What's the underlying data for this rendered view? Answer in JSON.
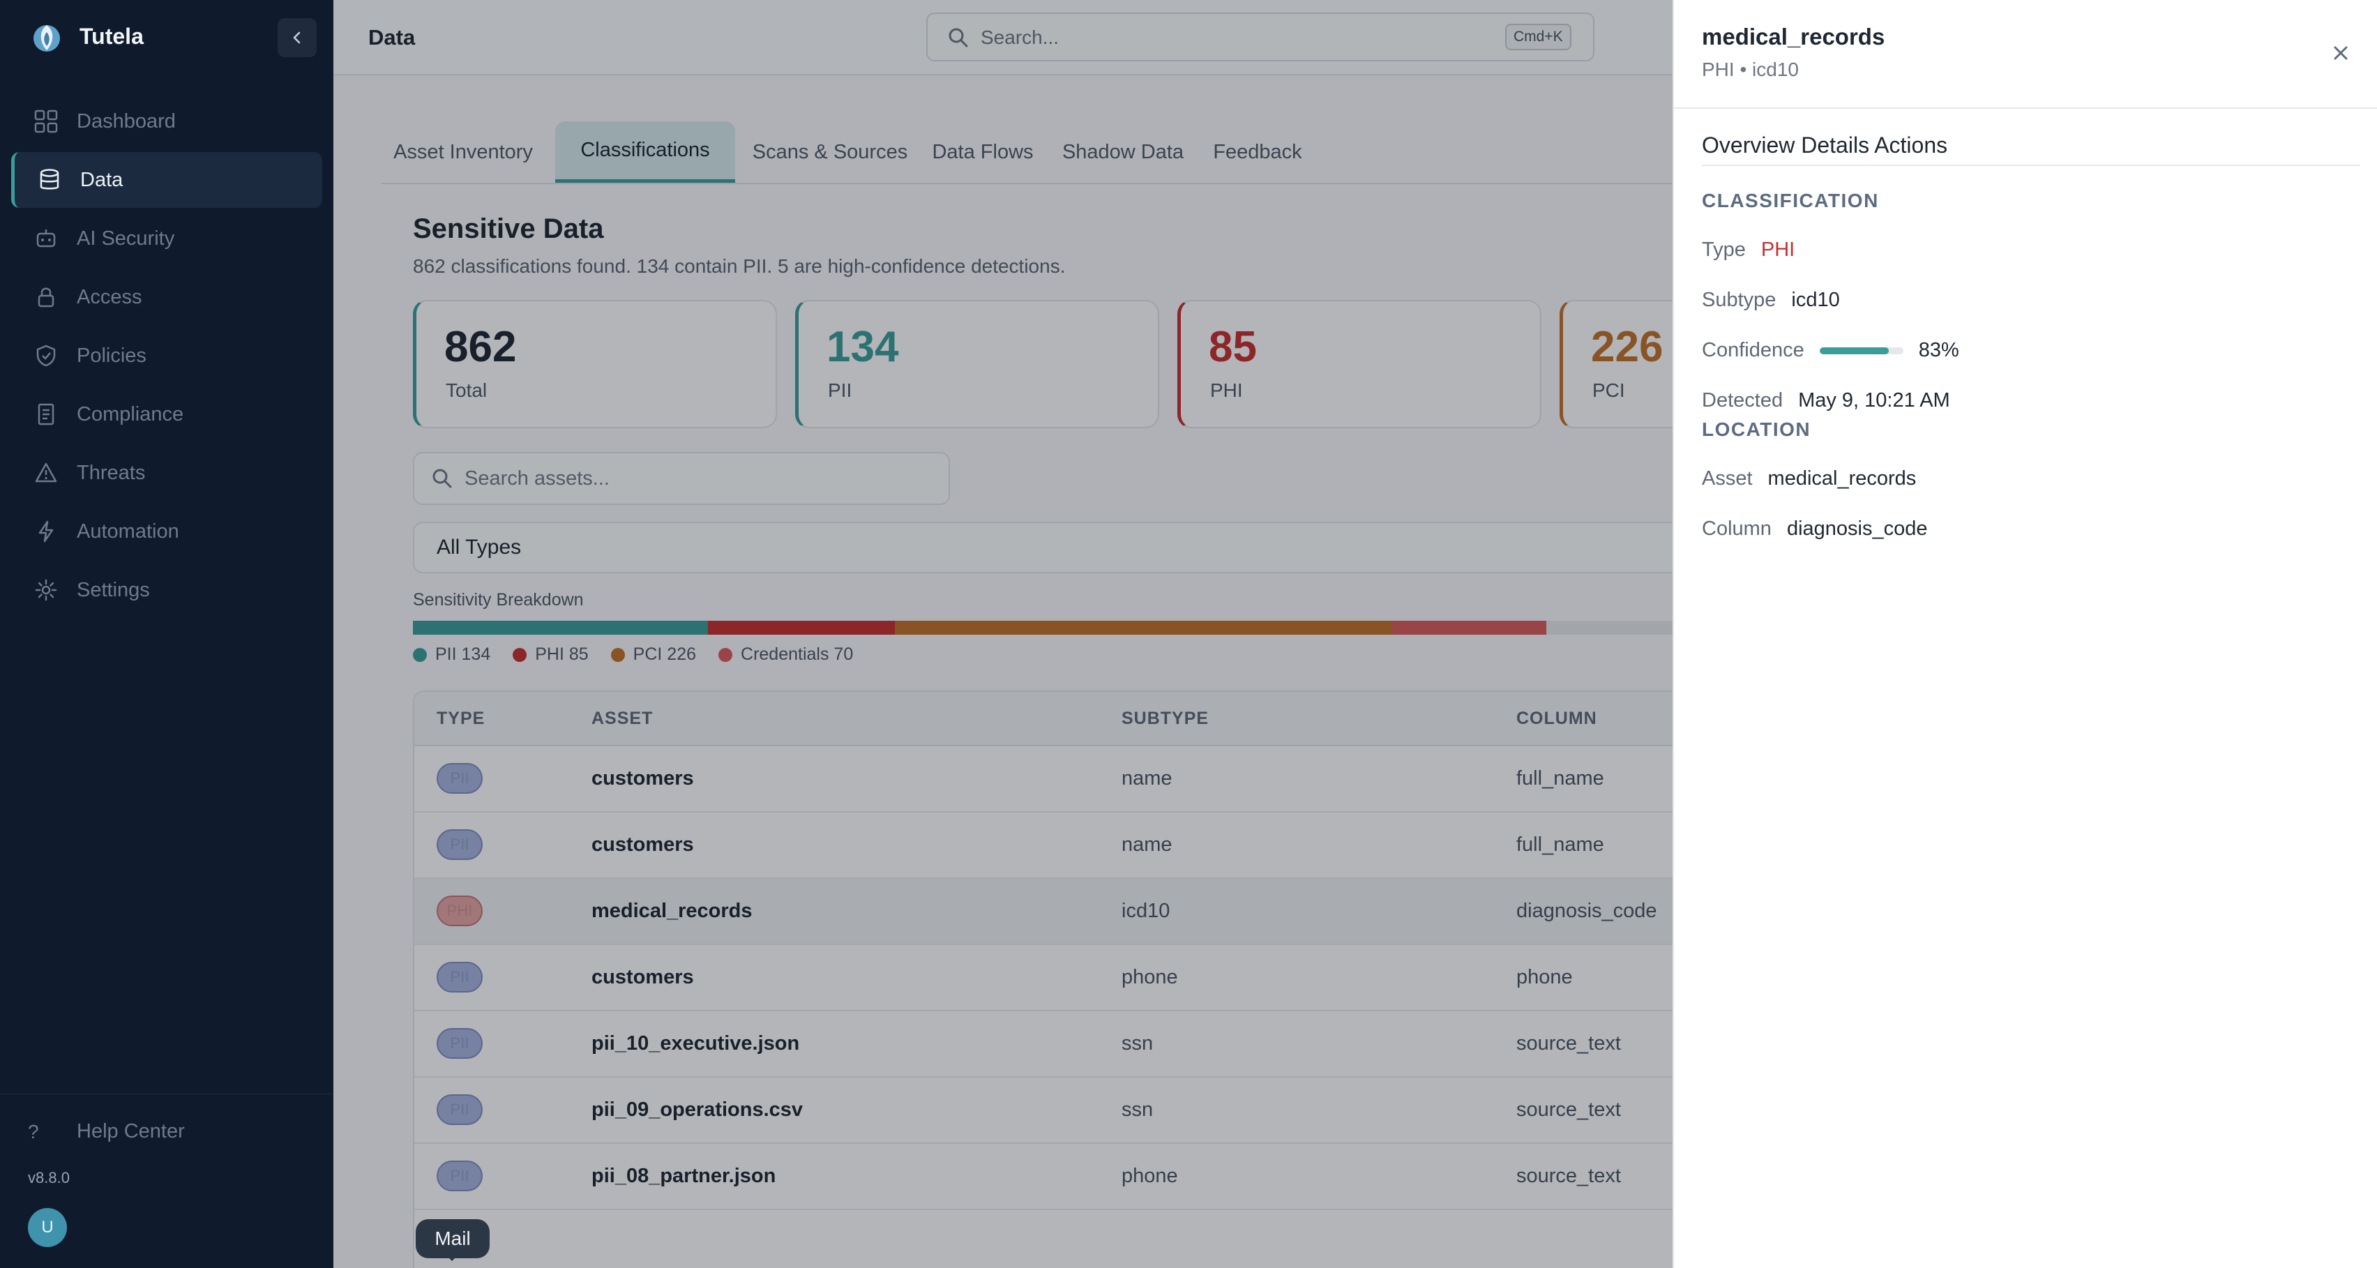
{
  "app": {
    "name": "Tutela",
    "version": "v8.8.0",
    "avatar_initial": "U",
    "collapse_icon": "chevron-left-icon"
  },
  "sidebar": {
    "items": [
      {
        "label": "Dashboard",
        "icon": "grid-icon",
        "active": false
      },
      {
        "label": "Data",
        "icon": "database-icon",
        "active": true
      },
      {
        "label": "AI Security",
        "icon": "robot-icon",
        "active": false
      },
      {
        "label": "Access",
        "icon": "lock-icon",
        "active": false
      },
      {
        "label": "Policies",
        "icon": "shield-icon",
        "active": false
      },
      {
        "label": "Compliance",
        "icon": "document-icon",
        "active": false
      },
      {
        "label": "Threats",
        "icon": "warning-icon",
        "active": false
      },
      {
        "label": "Automation",
        "icon": "lightning-icon",
        "active": false
      },
      {
        "label": "Settings",
        "icon": "gear-icon",
        "active": false
      }
    ],
    "help": {
      "label": "Help Center",
      "icon": "?"
    }
  },
  "header": {
    "title": "Data",
    "search": {
      "placeholder": "Search...",
      "shortcut": "Cmd+K"
    }
  },
  "main": {
    "tabs": [
      {
        "label": "Asset Inventory",
        "active": false
      },
      {
        "label": "Classifications",
        "active": true
      },
      {
        "label": "Scans & Sources",
        "active": false
      },
      {
        "label": "Data Flows",
        "active": false
      },
      {
        "label": "Shadow Data",
        "active": false
      },
      {
        "label": "Feedback",
        "active": false
      }
    ],
    "section_title": "Sensitive Data",
    "section_subtitle": "862 classifications found. 134 contain PII. 5 are high-confidence detections.",
    "cards": [
      {
        "value": "862",
        "label": "Total",
        "color": "#1f2733",
        "accent": "#3c9c99"
      },
      {
        "value": "134",
        "label": "PII",
        "color": "#3c9c99",
        "accent": "#3c9c99"
      },
      {
        "value": "85",
        "label": "PHI",
        "color": "#c53030",
        "accent": "#c53030"
      },
      {
        "value": "226",
        "label": "PCI",
        "color": "#c0712a",
        "accent": "#c0712a"
      }
    ],
    "asset_search": {
      "placeholder": "Search assets..."
    },
    "type_filter": {
      "selected": "All Types"
    },
    "breakdown": {
      "title": "Sensitivity Breakdown",
      "total": 862,
      "segments": [
        {
          "label": "PII",
          "value": 134,
          "color": "#3c9c99"
        },
        {
          "label": "PHI",
          "value": 85,
          "color": "#c53030"
        },
        {
          "label": "PCI",
          "value": 226,
          "color": "#c0712a"
        },
        {
          "label": "Credentials",
          "value": 70,
          "color": "#d95b5b"
        }
      ],
      "legend": [
        "PII 134",
        "PHI 85",
        "PCI 226",
        "Credentials 70"
      ]
    },
    "table": {
      "columns": [
        "TYPE",
        "ASSET",
        "SUBTYPE",
        "COLUMN"
      ],
      "rows": [
        {
          "type": "PII",
          "asset": "customers",
          "subtype": "name",
          "column": "full_name",
          "highlight": false
        },
        {
          "type": "PII",
          "asset": "customers",
          "subtype": "name",
          "column": "full_name",
          "highlight": false
        },
        {
          "type": "PHI",
          "asset": "medical_records",
          "subtype": "icd10",
          "column": "diagnosis_code",
          "highlight": true
        },
        {
          "type": "PII",
          "asset": "customers",
          "subtype": "phone",
          "column": "phone",
          "highlight": false
        },
        {
          "type": "PII",
          "asset": "pii_10_executive.json",
          "subtype": "ssn",
          "column": "source_text",
          "highlight": false
        },
        {
          "type": "PII",
          "asset": "pii_09_operations.csv",
          "subtype": "ssn",
          "column": "source_text",
          "highlight": false
        },
        {
          "type": "PII",
          "asset": "pii_08_partner.json",
          "subtype": "phone",
          "column": "source_text",
          "highlight": false
        }
      ]
    }
  },
  "tooltip": {
    "text": "Mail"
  },
  "panel": {
    "title": "medical_records",
    "subtitle": "PHI • icd10",
    "tabs_text": "Overview Details Actions",
    "classification": {
      "heading": "CLASSIFICATION",
      "type_label": "Type",
      "type_value": "PHI",
      "subtype_label": "Subtype",
      "subtype_value": "icd10",
      "confidence_label": "Confidence",
      "confidence_value": 0.83,
      "confidence_text": "83%",
      "detected_label": "Detected",
      "detected_value": "May 9, 10:21 AM"
    },
    "location": {
      "heading": "LOCATION",
      "asset_label": "Asset",
      "asset_value": "medical_records",
      "column_label": "Column",
      "column_value": "diagnosis_code"
    }
  }
}
